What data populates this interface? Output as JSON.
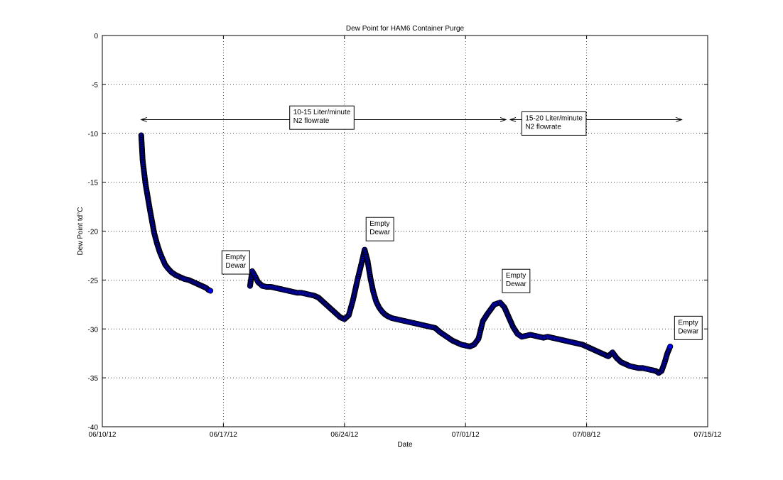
{
  "chart_data": {
    "type": "scatter",
    "title": "Dew Point for HAM6 Container Purge",
    "xlabel": "Date",
    "ylabel": "Dew Point td°C",
    "x_type": "date",
    "xlim": [
      "2012-06-10",
      "2012-07-15"
    ],
    "ylim": [
      -40,
      0
    ],
    "grid": true,
    "x_ticks": [
      "06/10/12",
      "06/17/12",
      "06/24/12",
      "07/01/12",
      "07/08/12",
      "07/15/12"
    ],
    "x_tick_dates": [
      "2012-06-10",
      "2012-06-17",
      "2012-06-24",
      "2012-07-01",
      "2012-07-08",
      "2012-07-15"
    ],
    "y_ticks": [
      0,
      -5,
      -10,
      -15,
      -20,
      -25,
      -30,
      -35,
      -40
    ],
    "marker_fill": "#0000ff",
    "marker_edge": "#000000",
    "series": [
      {
        "x": [
          "2012-06-12T06:00",
          "2012-06-12T07:00",
          "2012-06-12T08:00",
          "2012-06-12T10:00",
          "2012-06-12T12:00",
          "2012-06-12T15:00",
          "2012-06-12T18:00",
          "2012-06-12T21:00",
          "2012-06-13T00:00",
          "2012-06-13T04:00",
          "2012-06-13T08:00",
          "2012-06-13T12:00",
          "2012-06-13T15:00",
          "2012-06-13T19:00",
          "2012-06-14T00:00",
          "2012-06-14T06:00",
          "2012-06-14T12:00",
          "2012-06-14T18:00",
          "2012-06-15T00:00",
          "2012-06-15T06:00",
          "2012-06-15T12:00",
          "2012-06-15T18:00",
          "2012-06-16T00:00",
          "2012-06-16T03:00",
          "2012-06-16T06:00",
          "2012-06-18T13:00",
          "2012-06-18T16:00",
          "2012-06-18T20:00",
          "2012-06-19T00:00",
          "2012-06-19T06:00",
          "2012-06-19T12:00",
          "2012-06-19T18:00",
          "2012-06-20T00:00",
          "2012-06-20T06:00",
          "2012-06-20T12:00",
          "2012-06-20T18:00",
          "2012-06-21T00:00",
          "2012-06-21T06:00",
          "2012-06-21T12:00",
          "2012-06-21T18:00",
          "2012-06-22T00:00",
          "2012-06-22T06:00",
          "2012-06-22T12:00",
          "2012-06-22T18:00",
          "2012-06-23T00:00",
          "2012-06-23T06:00",
          "2012-06-23T12:00",
          "2012-06-23T18:00",
          "2012-06-24T00:00",
          "2012-06-24T06:00",
          "2012-06-24T12:00",
          "2012-06-24T18:00",
          "2012-06-25T00:00",
          "2012-06-25T04:00",
          "2012-06-25T08:00",
          "2012-06-25T12:00",
          "2012-06-25T16:00",
          "2012-06-25T20:00",
          "2012-06-26T00:00",
          "2012-06-26T04:00",
          "2012-06-26T08:00",
          "2012-06-26T12:00",
          "2012-06-26T18:00",
          "2012-06-27T00:00",
          "2012-06-27T06:00",
          "2012-06-27T12:00",
          "2012-06-27T18:00",
          "2012-06-28T00:00",
          "2012-06-28T06:00",
          "2012-06-28T12:00",
          "2012-06-28T18:00",
          "2012-06-29T00:00",
          "2012-06-29T06:00",
          "2012-06-29T12:00",
          "2012-06-29T18:00",
          "2012-06-30T00:00",
          "2012-06-30T06:00",
          "2012-06-30T12:00",
          "2012-06-30T18:00",
          "2012-07-01T00:00",
          "2012-07-01T06:00",
          "2012-07-01T12:00",
          "2012-07-01T18:00",
          "2012-07-02T00:00",
          "2012-07-02T06:00",
          "2012-07-02T12:00",
          "2012-07-02T16:00",
          "2012-07-02T20:00",
          "2012-07-03T00:00",
          "2012-07-03T06:00",
          "2012-07-03T12:00",
          "2012-07-03T18:00",
          "2012-07-04T00:00",
          "2012-07-04T06:00",
          "2012-07-04T12:00",
          "2012-07-04T18:00",
          "2012-07-05T00:00",
          "2012-07-05T06:00",
          "2012-07-05T12:00",
          "2012-07-05T18:00",
          "2012-07-06T00:00",
          "2012-07-06T06:00",
          "2012-07-06T12:00",
          "2012-07-06T18:00",
          "2012-07-07T00:00",
          "2012-07-07T06:00",
          "2012-07-07T12:00",
          "2012-07-07T18:00",
          "2012-07-08T00:00",
          "2012-07-08T06:00",
          "2012-07-08T12:00",
          "2012-07-08T18:00",
          "2012-07-09T00:00",
          "2012-07-09T06:00",
          "2012-07-09T12:00",
          "2012-07-09T18:00",
          "2012-07-10T00:00",
          "2012-07-10T06:00",
          "2012-07-10T12:00",
          "2012-07-10T18:00",
          "2012-07-11T00:00",
          "2012-07-11T06:00",
          "2012-07-11T12:00",
          "2012-07-11T18:00",
          "2012-07-12T00:00",
          "2012-07-12T04:00",
          "2012-07-12T08:00",
          "2012-07-12T12:00",
          "2012-07-12T16:00",
          "2012-07-12T20:00"
        ],
        "y": [
          -10.2,
          -11.5,
          -12.8,
          -14.0,
          -15.2,
          -16.5,
          -17.8,
          -19.0,
          -20.2,
          -21.3,
          -22.2,
          -22.9,
          -23.4,
          -23.8,
          -24.2,
          -24.5,
          -24.7,
          -24.9,
          -25.0,
          -25.2,
          -25.4,
          -25.6,
          -25.8,
          -26.0,
          -26.1,
          -25.6,
          -24.1,
          -24.6,
          -25.2,
          -25.6,
          -25.7,
          -25.7,
          -25.8,
          -25.9,
          -26.0,
          -26.1,
          -26.2,
          -26.3,
          -26.3,
          -26.4,
          -26.5,
          -26.6,
          -26.8,
          -27.2,
          -27.6,
          -28.0,
          -28.4,
          -28.8,
          -29.0,
          -28.6,
          -27.0,
          -25.0,
          -23.2,
          -21.9,
          -23.0,
          -24.8,
          -26.2,
          -27.2,
          -27.8,
          -28.2,
          -28.5,
          -28.7,
          -28.9,
          -29.0,
          -29.1,
          -29.2,
          -29.3,
          -29.4,
          -29.5,
          -29.6,
          -29.7,
          -29.8,
          -29.9,
          -30.3,
          -30.6,
          -30.9,
          -31.2,
          -31.4,
          -31.6,
          -31.7,
          -31.8,
          -31.6,
          -31.0,
          -29.2,
          -28.5,
          -27.9,
          -27.5,
          -27.4,
          -27.3,
          -27.8,
          -28.8,
          -29.8,
          -30.5,
          -30.8,
          -30.7,
          -30.6,
          -30.7,
          -30.8,
          -30.9,
          -30.8,
          -30.9,
          -31.0,
          -31.1,
          -31.2,
          -31.3,
          -31.4,
          -31.5,
          -31.6,
          -31.8,
          -32.0,
          -32.2,
          -32.4,
          -32.6,
          -32.8,
          -32.4,
          -33.0,
          -33.4,
          -33.6,
          -33.8,
          -33.9,
          -34.0,
          -34.0,
          -34.1,
          -34.2,
          -34.3,
          -34.5,
          -34.3,
          -33.5,
          -32.5,
          -31.8
        ]
      }
    ],
    "annotations": [
      {
        "text": "10-15 Liter/minute",
        "line2": "N2 flowrate",
        "at_x": "2012-06-20T20:00",
        "at_y": -7.2
      },
      {
        "text": "15-20 Liter/minute",
        "line2": "N2 flowrate",
        "at_x": "2012-07-04T06:00",
        "at_y": -7.8
      },
      {
        "text": "Empty",
        "line2": "Dewar",
        "at_x": "2012-06-16T22:00",
        "at_y": -22.0
      },
      {
        "text": "Empty",
        "line2": "Dewar",
        "at_x": "2012-06-25T06:00",
        "at_y": -18.6
      },
      {
        "text": "Empty",
        "line2": "Dewar",
        "at_x": "2012-07-03T03:00",
        "at_y": -23.9
      },
      {
        "text": "Empty",
        "line2": "Dewar",
        "at_x": "2012-07-13T02:00",
        "at_y": -28.7
      }
    ],
    "flow_arrows": [
      {
        "from": "2012-06-12T06:00",
        "to": "2012-07-03T08:00",
        "y": -8.6
      },
      {
        "from": "2012-07-03T14:00",
        "to": "2012-07-13T12:00",
        "y": -8.6
      }
    ]
  }
}
